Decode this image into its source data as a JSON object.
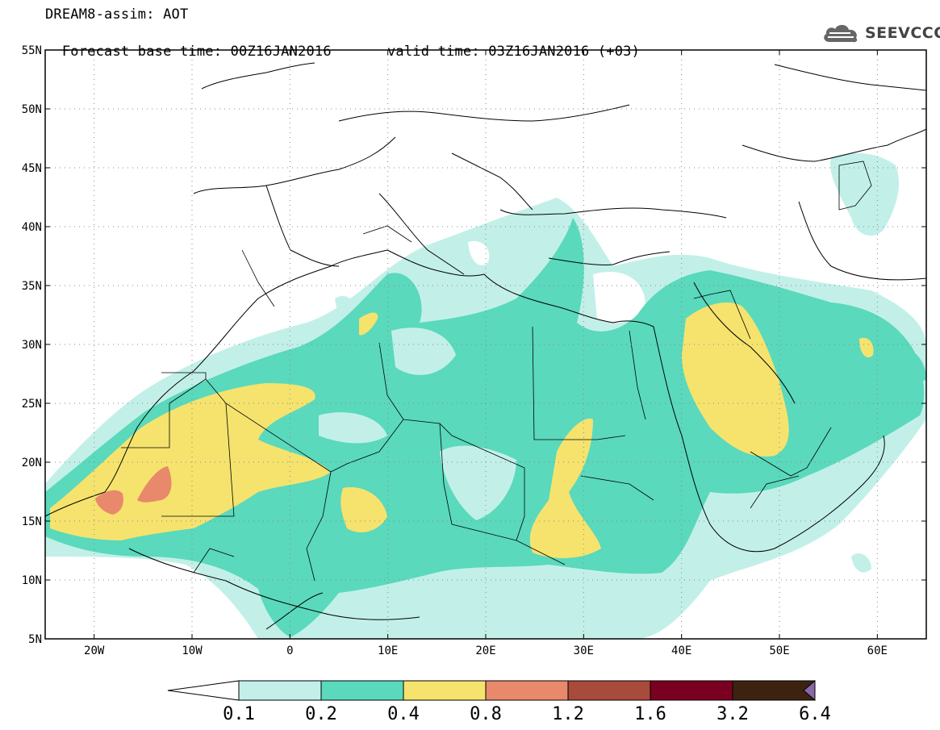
{
  "title": {
    "line1": "DREAM8-assim: AOT",
    "base_time": "Forecast base time: 00Z16JAN2016",
    "valid_time": "valid time: 03Z16JAN2016 (+03)"
  },
  "logo": {
    "text": "SEEVCCC",
    "icon": "cloud-icon"
  },
  "map": {
    "lon_range": [
      -25,
      65
    ],
    "lat_range": [
      5,
      55
    ],
    "lat_ticks": [
      {
        "value": 55,
        "label": "55N"
      },
      {
        "value": 50,
        "label": "50N"
      },
      {
        "value": 45,
        "label": "45N"
      },
      {
        "value": 40,
        "label": "40N"
      },
      {
        "value": 35,
        "label": "35N"
      },
      {
        "value": 30,
        "label": "30N"
      },
      {
        "value": 25,
        "label": "25N"
      },
      {
        "value": 20,
        "label": "20N"
      },
      {
        "value": 15,
        "label": "15N"
      },
      {
        "value": 10,
        "label": "10N"
      },
      {
        "value": 5,
        "label": "5N"
      }
    ],
    "lon_ticks": [
      {
        "value": -20,
        "label": "20W"
      },
      {
        "value": -10,
        "label": "10W"
      },
      {
        "value": 0,
        "label": "0"
      },
      {
        "value": 10,
        "label": "10E"
      },
      {
        "value": 20,
        "label": "20E"
      },
      {
        "value": 30,
        "label": "30E"
      },
      {
        "value": 40,
        "label": "40E"
      },
      {
        "value": 50,
        "label": "50E"
      },
      {
        "value": 60,
        "label": "60E"
      }
    ],
    "grid": "dotted"
  },
  "colorbar": {
    "colors": [
      "#c2f0e8",
      "#5ad9bc",
      "#f5e36e",
      "#e8896b",
      "#a84a3c",
      "#7a0022",
      "#3d2212",
      "#8a67a6"
    ],
    "labels": [
      "0.1",
      "0.2",
      "0.4",
      "0.8",
      "1.2",
      "1.6",
      "3.2",
      "6.4"
    ]
  }
}
